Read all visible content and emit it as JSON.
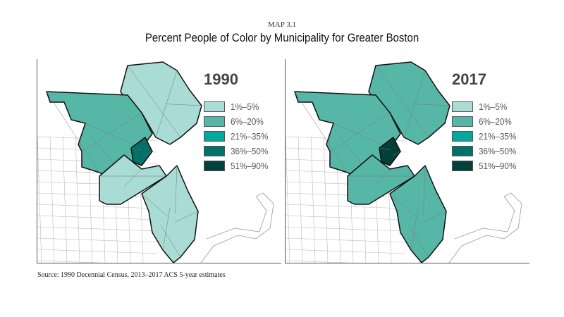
{
  "label": "MAP 3.1",
  "title": "Percent People of Color by Municipality for Greater Boston",
  "source": "Source: 1990 Decennial Census, 2013–2017 ACS 5-year estimates",
  "legend": [
    {
      "label": "1%–5%",
      "color": "#a9dcd4"
    },
    {
      "label": "6%–20%",
      "color": "#57b7a7"
    },
    {
      "label": "21%–35%",
      "color": "#00a99d"
    },
    {
      "label": "36%–50%",
      "color": "#047168"
    },
    {
      "label": "51%–90%",
      "color": "#03403a"
    }
  ],
  "maps": [
    {
      "year": "1990",
      "regions": {
        "north": 0,
        "west": 1,
        "boston": 3,
        "southwest": 0,
        "southeast": 0
      }
    },
    {
      "year": "2017",
      "regions": {
        "north": 1,
        "west": 1,
        "boston": 4,
        "southwest": 1,
        "southeast": 1
      }
    }
  ]
}
